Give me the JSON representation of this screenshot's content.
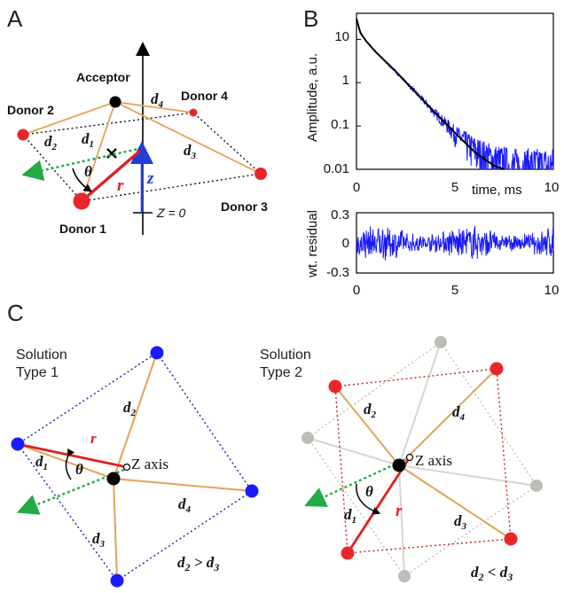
{
  "panels": {
    "a": "A",
    "b": "B",
    "c": "C"
  },
  "panel_a": {
    "acceptor": "Acceptor",
    "donor1": "Donor 1",
    "donor2": "Donor 2",
    "donor3": "Donor 3",
    "donor4": "Donor 4",
    "d1": "d",
    "d1_sub": "1",
    "d2": "d",
    "d2_sub": "2",
    "d3": "d",
    "d3_sub": "3",
    "d4": "d",
    "d4_sub": "4",
    "theta": "θ",
    "r": "r",
    "z": "z",
    "z0": "Z = 0",
    "colors": {
      "donor": "#e8262a",
      "acceptor": "#000000",
      "bond": "#e0a458",
      "r": "#e02020",
      "z": "#1f3fd6",
      "dashed": "#22aa44"
    }
  },
  "panel_c": {
    "type1_line1": "Solution",
    "type1_line2": "Type 1",
    "type2_line1": "Solution",
    "type2_line2": "Type 2",
    "zaxis1": "Z axis",
    "zaxis2": "Z axis",
    "d1": "d",
    "d1_sub": "1",
    "d2": "d",
    "d2_sub": "2",
    "d3": "d",
    "d3_sub": "3",
    "d4": "d",
    "d4_sub": "4",
    "r": "r",
    "theta": "θ",
    "cond1_a": "d",
    "cond1_a_sub": "2",
    "cond1_op": " > ",
    "cond1_b": "d",
    "cond1_b_sub": "3",
    "cond2_a": "d",
    "cond2_a_sub": "2",
    "cond2_op": " < ",
    "cond2_b": "d",
    "cond2_b_sub": "3",
    "colors": {
      "type1_donor": "#1a1aff",
      "type2_donor": "#e8262a",
      "ghost": "#bdbdb6",
      "bond": "#e0a458"
    }
  },
  "chart_data": [
    {
      "type": "line",
      "ylabel": "Amplitude, a.u.",
      "xlabel": "time, ms",
      "yscale": "log",
      "ylim": [
        0.01,
        40
      ],
      "xlim": [
        0,
        10
      ],
      "yticks": [
        "10",
        "1",
        "0.1",
        "0.01"
      ],
      "xticks": [
        "0",
        "5",
        "10"
      ],
      "series": [
        {
          "role": "data",
          "color": "#1a1aff",
          "x": [
            0,
            0.2,
            0.5,
            1,
            2,
            3,
            4,
            5,
            6,
            7,
            8
          ],
          "y": [
            30,
            15,
            9,
            5,
            1.8,
            0.6,
            0.2,
            0.07,
            0.03,
            0.015,
            0.01
          ]
        },
        {
          "role": "fit",
          "color": "#000000",
          "x": [
            0,
            0.2,
            0.5,
            1,
            2,
            3,
            4,
            5,
            6,
            7,
            7.5
          ],
          "y": [
            30,
            14,
            9,
            5,
            1.8,
            0.6,
            0.2,
            0.07,
            0.025,
            0.012,
            0.01
          ]
        }
      ]
    },
    {
      "type": "line",
      "ylabel": "wt. residual",
      "xlim": [
        0,
        10
      ],
      "ylim": [
        -0.3,
        0.3
      ],
      "yticks": [
        "0.3",
        "0",
        "-0.3"
      ],
      "xticks": [
        "0",
        "5",
        "10"
      ],
      "series": [
        {
          "role": "residual",
          "color": "#1a1aff"
        }
      ]
    }
  ]
}
